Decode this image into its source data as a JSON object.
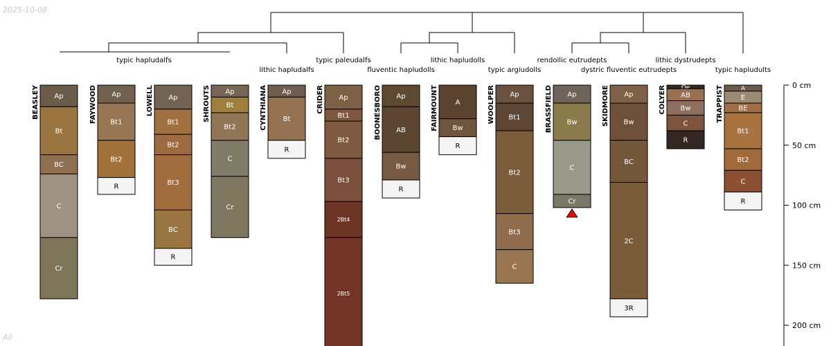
{
  "date": "2025-10-08",
  "subset": "All",
  "chart_data": {
    "type": "soil_profile_sketch",
    "depth_unit": "cm",
    "depth_ticks": [
      {
        "value": 0,
        "label": "0 cm"
      },
      {
        "value": 50,
        "label": "50 cm"
      },
      {
        "value": 100,
        "label": "100 cm"
      },
      {
        "value": 150,
        "label": "150 cm"
      },
      {
        "value": 200,
        "label": "200 cm"
      }
    ],
    "dendrogram_labels": [
      "typic hapludalfs",
      "lithic hapludalfs",
      "typic paleudalfs",
      "fluventic hapludolls",
      "lithic hapludolls",
      "typic argiudolls",
      "rendollic eutrudepts",
      "dystric fluventic eutrudepts",
      "lithic dystrudepts",
      "typic hapludults"
    ],
    "profiles": [
      {
        "name": "BEASLEY",
        "horizons": [
          {
            "name": "Ap",
            "top": 0,
            "bottom": 18,
            "color": "#6b5b4b"
          },
          {
            "name": "Bt",
            "top": 18,
            "bottom": 58,
            "color": "#9a7540"
          },
          {
            "name": "BC",
            "top": 58,
            "bottom": 74,
            "color": "#8f6f4f"
          },
          {
            "name": "C",
            "top": 74,
            "bottom": 127,
            "color": "#a09282"
          },
          {
            "name": "Cr",
            "top": 127,
            "bottom": 178,
            "color": "#7f7558"
          }
        ]
      },
      {
        "name": "FAYWOOD",
        "horizons": [
          {
            "name": "Ap",
            "top": 0,
            "bottom": 15,
            "color": "#6f6050"
          },
          {
            "name": "Bt1",
            "top": 15,
            "bottom": 46,
            "color": "#977653"
          },
          {
            "name": "Bt2",
            "top": 46,
            "bottom": 77,
            "color": "#a07138"
          },
          {
            "name": "R",
            "top": 77,
            "bottom": 91,
            "color": "#f4f4f4"
          }
        ]
      },
      {
        "name": "LOWELL",
        "horizons": [
          {
            "name": "Ap",
            "top": 0,
            "bottom": 20,
            "color": "#736352"
          },
          {
            "name": "Bt1",
            "top": 20,
            "bottom": 41,
            "color": "#a2703f"
          },
          {
            "name": "Bt2",
            "top": 41,
            "bottom": 58,
            "color": "#9e6a40"
          },
          {
            "name": "Bt3",
            "top": 58,
            "bottom": 104,
            "color": "#a26d3c"
          },
          {
            "name": "BC",
            "top": 104,
            "bottom": 136,
            "color": "#9b753f"
          },
          {
            "name": "R",
            "top": 136,
            "bottom": 150,
            "color": "#f4f4f4"
          }
        ]
      },
      {
        "name": "SHROUTS",
        "horizons": [
          {
            "name": "Ap",
            "top": 0,
            "bottom": 10,
            "color": "#776656"
          },
          {
            "name": "Bt",
            "top": 10,
            "bottom": 23,
            "color": "#a07f3c"
          },
          {
            "name": "Bt2",
            "top": 23,
            "bottom": 46,
            "color": "#917656"
          },
          {
            "name": "C",
            "top": 46,
            "bottom": 76,
            "color": "#817c68"
          },
          {
            "name": "Cr",
            "top": 76,
            "bottom": 127,
            "color": "#7e7760"
          }
        ]
      },
      {
        "name": "CYNTHIANA",
        "horizons": [
          {
            "name": "Ap",
            "top": 0,
            "bottom": 10,
            "color": "#6f5e4f"
          },
          {
            "name": "Bt",
            "top": 10,
            "bottom": 46,
            "color": "#95724f"
          },
          {
            "name": "R",
            "top": 46,
            "bottom": 61,
            "color": "#f4f4f4"
          }
        ]
      },
      {
        "name": "CRIDER",
        "horizons": [
          {
            "name": "Ap",
            "top": 0,
            "bottom": 20,
            "color": "#7c6147"
          },
          {
            "name": "Bt1",
            "top": 20,
            "bottom": 30,
            "color": "#7f563e"
          },
          {
            "name": "Bt2",
            "top": 30,
            "bottom": 61,
            "color": "#7f5a40"
          },
          {
            "name": "Bt3",
            "top": 61,
            "bottom": 97,
            "color": "#7c4e3c"
          },
          {
            "name": "2Bt4",
            "top": 97,
            "bottom": 127,
            "color": "#6e3424"
          },
          {
            "name": "2Bt5",
            "top": 127,
            "bottom": 220,
            "color": "#733428"
          }
        ]
      },
      {
        "name": "BOONESBORO",
        "horizons": [
          {
            "name": "Ap",
            "top": 0,
            "bottom": 18,
            "color": "#5e4a33"
          },
          {
            "name": "AB",
            "top": 18,
            "bottom": 56,
            "color": "#5c4632"
          },
          {
            "name": "Bw",
            "top": 56,
            "bottom": 79,
            "color": "#765b42"
          },
          {
            "name": "R",
            "top": 79,
            "bottom": 94,
            "color": "#f4f4f4"
          }
        ]
      },
      {
        "name": "FAIRMOUNT",
        "horizons": [
          {
            "name": "A",
            "top": 0,
            "bottom": 28,
            "color": "#5a432f"
          },
          {
            "name": "Bw",
            "top": 28,
            "bottom": 43,
            "color": "#6e553e"
          },
          {
            "name": "R",
            "top": 43,
            "bottom": 58,
            "color": "#f4f4f4"
          }
        ]
      },
      {
        "name": "WOOLPER",
        "horizons": [
          {
            "name": "Ap",
            "top": 0,
            "bottom": 15,
            "color": "#6a5240"
          },
          {
            "name": "Bt1",
            "top": 15,
            "bottom": 38,
            "color": "#5e4634"
          },
          {
            "name": "Bt2",
            "top": 38,
            "bottom": 107,
            "color": "#7b5c3b"
          },
          {
            "name": "Bt3",
            "top": 107,
            "bottom": 137,
            "color": "#8f6c4b"
          },
          {
            "name": "C",
            "top": 137,
            "bottom": 165,
            "color": "#9a7650"
          }
        ]
      },
      {
        "name": "BRASSFIELD",
        "horizons": [
          {
            "name": "Ap",
            "top": 0,
            "bottom": 15,
            "color": "#6e6459"
          },
          {
            "name": "Bw",
            "top": 15,
            "bottom": 46,
            "color": "#8b7c4b"
          },
          {
            "name": "C",
            "top": 46,
            "bottom": 91,
            "color": "#999a8a"
          },
          {
            "name": "Cr",
            "top": 91,
            "bottom": 102,
            "color": "#7b7868"
          }
        ],
        "truncated": true
      },
      {
        "name": "SKIDMORE",
        "horizons": [
          {
            "name": "Ap",
            "top": 0,
            "bottom": 15,
            "color": "#7f6246"
          },
          {
            "name": "Bw",
            "top": 15,
            "bottom": 46,
            "color": "#6e5038"
          },
          {
            "name": "BC",
            "top": 46,
            "bottom": 81,
            "color": "#745638"
          },
          {
            "name": "2C",
            "top": 81,
            "bottom": 178,
            "color": "#7a5c3a"
          },
          {
            "name": "3R",
            "top": 178,
            "bottom": 193,
            "color": "#f4f4f4"
          }
        ]
      },
      {
        "name": "COLYER",
        "horizons": [
          {
            "name": "Oe",
            "top": 0,
            "bottom": 3,
            "color": "#382a22"
          },
          {
            "name": "AB",
            "top": 3,
            "bottom": 13,
            "color": "#987050"
          },
          {
            "name": "Bw",
            "top": 13,
            "bottom": 25,
            "color": "#8d6f5d"
          },
          {
            "name": "C",
            "top": 25,
            "bottom": 38,
            "color": "#7e553c"
          },
          {
            "name": "R",
            "top": 38,
            "bottom": 53,
            "color": "#342622"
          }
        ]
      },
      {
        "name": "TRAPPIST",
        "horizons": [
          {
            "name": "A",
            "top": 0,
            "bottom": 5,
            "color": "#6a5a4a"
          },
          {
            "name": "E",
            "top": 5,
            "bottom": 15,
            "color": "#9c8a72"
          },
          {
            "name": "BE",
            "top": 15,
            "bottom": 23,
            "color": "#a06d45"
          },
          {
            "name": "Bt1",
            "top": 23,
            "bottom": 53,
            "color": "#a8733f"
          },
          {
            "name": "Bt2",
            "top": 53,
            "bottom": 71,
            "color": "#a06a3a"
          },
          {
            "name": "C",
            "top": 71,
            "bottom": 89,
            "color": "#8c5133"
          },
          {
            "name": "R",
            "top": 89,
            "bottom": 104,
            "color": "#f4f4f4"
          }
        ]
      }
    ]
  }
}
